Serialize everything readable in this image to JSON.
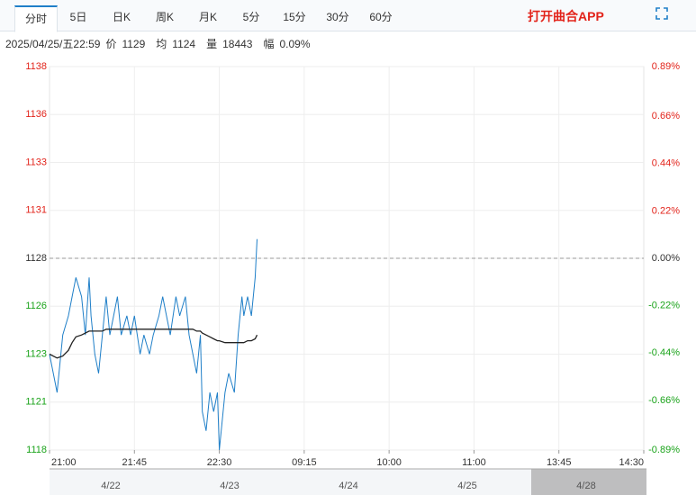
{
  "tabs": [
    "分时",
    "5日",
    "日K",
    "周K",
    "月K",
    "5分",
    "15分",
    "30分",
    "60分"
  ],
  "open_app": "打开曲合APP",
  "info": {
    "datetime": "2025/04/25/五22:59",
    "items": [
      {
        "label": "价",
        "value": 1129
      },
      {
        "label": "均",
        "value": 1124
      },
      {
        "label": "量",
        "value": 18443
      },
      {
        "label": "幅",
        "value": "0.09%"
      }
    ]
  },
  "navigator_dates": [
    "4/22",
    "4/23",
    "4/24",
    "4/25",
    "4/28"
  ],
  "chart_data": {
    "type": "line",
    "x": [
      0,
      4,
      7,
      10,
      12,
      14,
      17,
      19,
      21,
      22,
      24,
      26,
      28,
      30,
      32,
      34,
      36,
      38,
      41,
      43,
      45,
      48,
      50,
      53,
      55,
      58,
      60,
      62,
      64,
      67,
      69,
      72,
      74,
      76,
      78,
      80,
      81,
      83,
      85,
      87,
      89,
      90,
      93,
      95,
      98,
      100,
      102,
      103,
      105,
      107,
      109,
      110
    ],
    "series": [
      {
        "name": "价",
        "color": "#1f7fc8",
        "values": [
          1123,
          1121,
          1124,
          1125,
          1126,
          1127,
          1126,
          1124,
          1127,
          1125,
          1123,
          1122,
          1124,
          1126,
          1124,
          1125,
          1126,
          1124,
          1125,
          1124,
          1125,
          1123,
          1124,
          1123,
          1124,
          1125,
          1126,
          1125,
          1124,
          1126,
          1125,
          1126,
          1124,
          1123,
          1122,
          1124,
          1120,
          1119,
          1121,
          1120,
          1121,
          1118,
          1121,
          1122,
          1121,
          1124,
          1126,
          1125,
          1126,
          1125,
          1127,
          1129
        ]
      },
      {
        "name": "均",
        "color": "#222222",
        "values": [
          1123,
          1122.8,
          1122.9,
          1123.2,
          1123.6,
          1123.9,
          1124,
          1124.1,
          1124.2,
          1124.2,
          1124.2,
          1124.2,
          1124.2,
          1124.3,
          1124.3,
          1124.3,
          1124.3,
          1124.3,
          1124.3,
          1124.3,
          1124.3,
          1124.3,
          1124.3,
          1124.3,
          1124.3,
          1124.3,
          1124.3,
          1124.3,
          1124.3,
          1124.3,
          1124.3,
          1124.3,
          1124.3,
          1124.3,
          1124.2,
          1124.2,
          1124.1,
          1124,
          1123.9,
          1123.8,
          1123.7,
          1123.7,
          1123.6,
          1123.6,
          1123.6,
          1123.6,
          1123.6,
          1123.6,
          1123.7,
          1123.7,
          1123.8,
          1124
        ]
      }
    ],
    "baseline": 1128,
    "xlim": [
      0,
      315
    ],
    "xticks": [
      {
        "value": 0,
        "label": "21:00"
      },
      {
        "value": 45,
        "label": "21:45"
      },
      {
        "value": 90,
        "label": "22:30"
      },
      {
        "value": 135,
        "label": "09:15"
      },
      {
        "value": 180,
        "label": "10:00"
      },
      {
        "value": 225,
        "label": "11:00"
      },
      {
        "value": 270,
        "label": "13:45"
      },
      {
        "value": 315,
        "label": "14:30"
      }
    ],
    "ylim": [
      1118,
      1138
    ],
    "yticks": [
      1118,
      {
        "value": 1120.5,
        "label": "1121"
      },
      1123,
      {
        "value": 1125.5,
        "label": "1126"
      },
      1128,
      {
        "value": 1130.5,
        "label": "1131"
      },
      1133,
      {
        "value": 1135.5,
        "label": "1136"
      },
      1138
    ],
    "y2lim": [
      -0.89,
      0.89
    ],
    "y2ticks": [
      {
        "value": -0.89,
        "label": "-0.89%"
      },
      {
        "value": -0.66,
        "label": "-0.66%"
      },
      {
        "value": -0.44,
        "label": "-0.44%"
      },
      {
        "value": -0.22,
        "label": "-0.22%"
      },
      {
        "value": 0,
        "label": "0.00%"
      },
      {
        "value": 0.22,
        "label": "0.22%"
      },
      {
        "value": 0.44,
        "label": "0.44%"
      },
      {
        "value": 0.66,
        "label": "0.66%"
      },
      {
        "value": 0.89,
        "label": "0.89%"
      }
    ],
    "grid": true
  }
}
